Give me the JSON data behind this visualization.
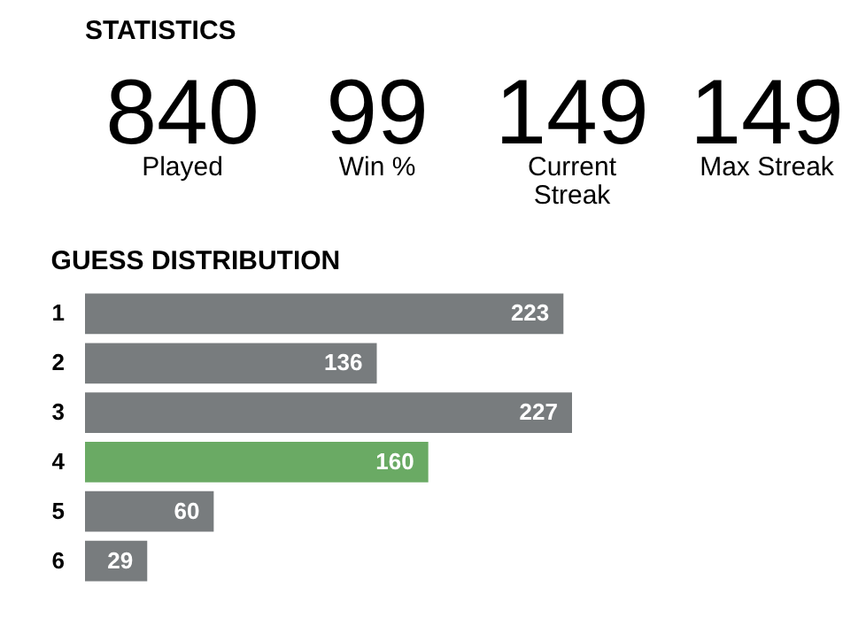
{
  "chart_data": [
    {
      "type": "other",
      "title": "STATISTICS",
      "annotations": [
        "840",
        "Played",
        "99",
        "Win %",
        "149",
        "Current Streak",
        "149",
        "Max Streak"
      ]
    },
    {
      "type": "bar",
      "orientation": "horizontal",
      "title": "GUESS DISTRIBUTION",
      "categories": [
        "1",
        "2",
        "3",
        "4",
        "5",
        "6"
      ],
      "values": [
        223,
        136,
        227,
        160,
        60,
        29
      ],
      "colors": [
        "#787c7e",
        "#787c7e",
        "#787c7e",
        "#6aaa64",
        "#787c7e",
        "#787c7e"
      ],
      "data_labels": true
    }
  ]
}
